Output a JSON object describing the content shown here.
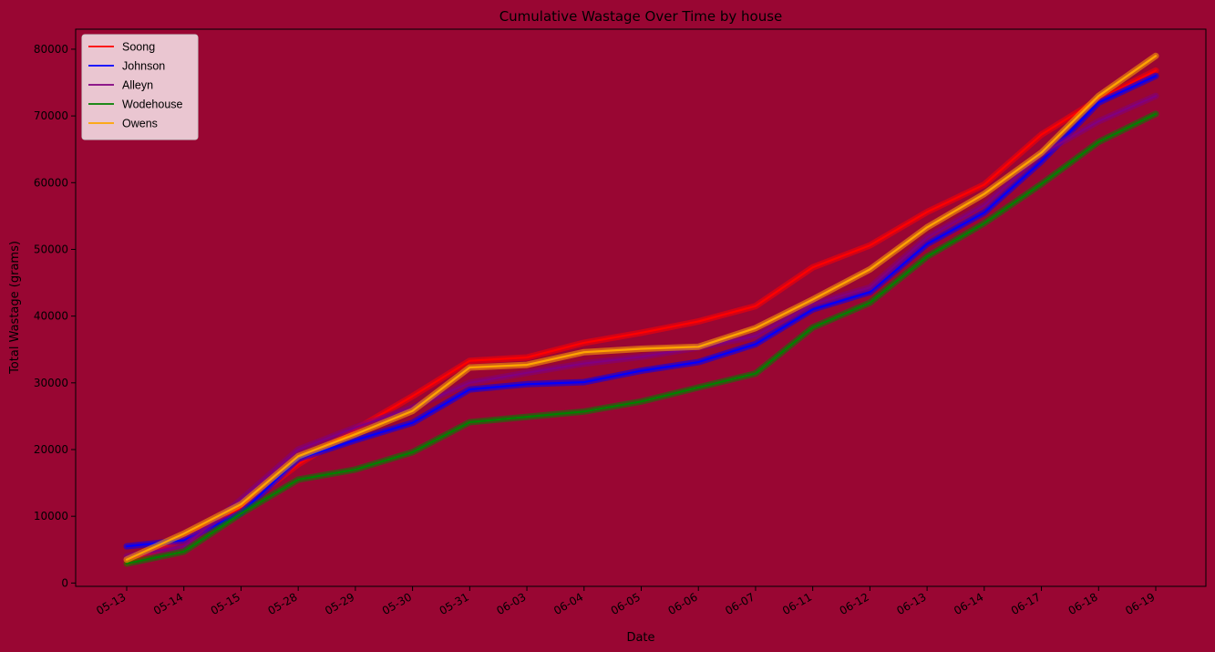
{
  "chart_data": {
    "type": "line",
    "title": "Cumulative Wastage Over Time by house",
    "xlabel": "Date",
    "ylabel": "Total Wastage (grams)",
    "ylim": [
      -500,
      83000
    ],
    "yticks": [
      0,
      10000,
      20000,
      30000,
      40000,
      50000,
      60000,
      70000,
      80000
    ],
    "grid": false,
    "legend_position": "top-left",
    "background": "#990633",
    "categories": [
      "05-13",
      "05-14",
      "05-15",
      "05-28",
      "05-29",
      "05-30",
      "05-31",
      "06-03",
      "06-04",
      "06-05",
      "06-06",
      "06-07",
      "06-11",
      "06-12",
      "06-13",
      "06-14",
      "06-17",
      "06-18",
      "06-19"
    ],
    "series": [
      {
        "name": "Soong",
        "color": "#ff0000",
        "values": [
          3000,
          6600,
          11300,
          17800,
          23000,
          28000,
          33300,
          33800,
          36000,
          37500,
          39200,
          41500,
          47300,
          50600,
          55600,
          59700,
          67200,
          72500,
          76800
        ]
      },
      {
        "name": "Johnson",
        "color": "#0000ff",
        "values": [
          5500,
          6400,
          10500,
          18600,
          21400,
          24000,
          29000,
          29800,
          30100,
          31800,
          33100,
          35800,
          41000,
          43600,
          50800,
          55500,
          63200,
          72000,
          76000
        ]
      },
      {
        "name": "Alleyn",
        "color": "#800080",
        "values": [
          4000,
          5500,
          12500,
          20000,
          23300,
          26300,
          30000,
          31500,
          32900,
          33900,
          35300,
          37000,
          41800,
          44300,
          51800,
          56600,
          64300,
          69200,
          73000
        ]
      },
      {
        "name": "Wodehouse",
        "color": "#008000",
        "values": [
          2900,
          4700,
          10400,
          15500,
          17000,
          19600,
          24100,
          24900,
          25700,
          27200,
          29300,
          31400,
          38300,
          42000,
          48900,
          53900,
          59800,
          66100,
          70300
        ]
      },
      {
        "name": "Owens",
        "color": "#ffa500",
        "values": [
          3500,
          7400,
          11800,
          19000,
          22300,
          25800,
          32300,
          32700,
          34600,
          35100,
          35400,
          38200,
          42500,
          47000,
          53300,
          58300,
          64500,
          73000,
          79000
        ]
      }
    ]
  }
}
